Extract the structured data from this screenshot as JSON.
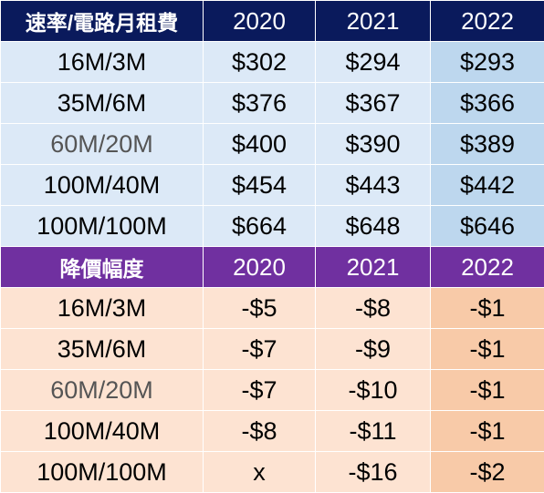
{
  "price_table": {
    "header": {
      "label": "速率/電路月租費",
      "years": [
        "2020",
        "2021",
        "2022"
      ]
    },
    "rows": [
      {
        "speed": "16M/3M",
        "values": [
          "$302",
          "$294",
          "$293"
        ]
      },
      {
        "speed": "35M/6M",
        "values": [
          "$376",
          "$367",
          "$366"
        ]
      },
      {
        "speed": "60M/20M",
        "values": [
          "$400",
          "$390",
          "$389"
        ]
      },
      {
        "speed": "100M/40M",
        "values": [
          "$454",
          "$443",
          "$442"
        ]
      },
      {
        "speed": "100M/100M",
        "values": [
          "$664",
          "$648",
          "$646"
        ]
      }
    ]
  },
  "reduction_table": {
    "header": {
      "label": "降價幅度",
      "years": [
        "2020",
        "2021",
        "2022"
      ]
    },
    "rows": [
      {
        "speed": "16M/3M",
        "values": [
          "-$5",
          "-$8",
          "-$1"
        ]
      },
      {
        "speed": "35M/6M",
        "values": [
          "-$7",
          "-$9",
          "-$1"
        ]
      },
      {
        "speed": "60M/20M",
        "values": [
          "-$7",
          "-$10",
          "-$1"
        ]
      },
      {
        "speed": "100M/40M",
        "values": [
          "-$8",
          "-$11",
          "-$1"
        ]
      },
      {
        "speed": "100M/100M",
        "values": [
          "x",
          "-$16",
          "-$2"
        ]
      }
    ]
  },
  "colors": {
    "blue_header": "#0a1a5c",
    "blue_body": "#dce9f7",
    "blue_highlight": "#bdd7ee",
    "purple_header": "#7030a0",
    "orange_body": "#fde3d2",
    "orange_highlight": "#f8caa8"
  }
}
